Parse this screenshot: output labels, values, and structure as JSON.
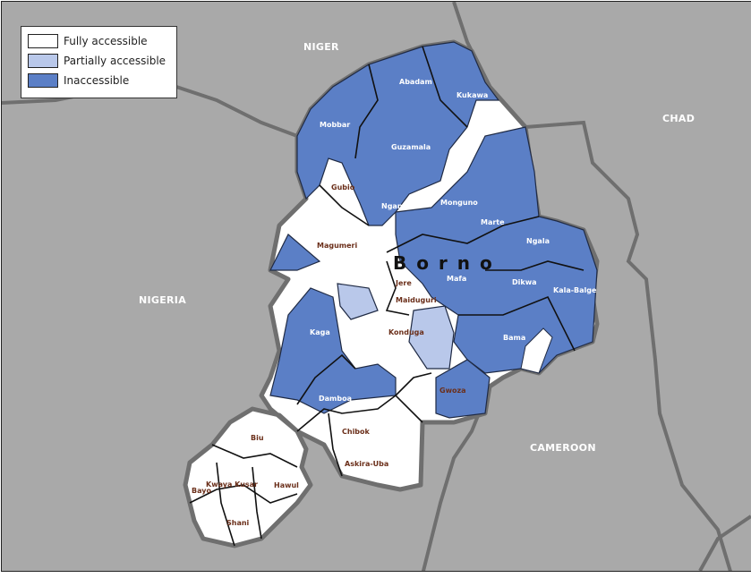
{
  "legend": {
    "items": [
      {
        "label": "Fully accessible",
        "color": "#ffffff"
      },
      {
        "label": "Partially accessible",
        "color": "#b9c8ea"
      },
      {
        "label": "Inaccessible",
        "color": "#5b7fc6"
      }
    ]
  },
  "countries": {
    "niger": "NIGER",
    "chad": "CHAD",
    "nigeria": "NIGERIA",
    "cameroon": "CAMEROON"
  },
  "state_label": "B o r n o",
  "colors": {
    "background": "#a9a9a9",
    "border": "#6f6f6f",
    "lga_label_blue": "#ffffff",
    "lga_label_white": "#6b2f1a"
  },
  "lgas": [
    {
      "name": "Abadam",
      "status": "Inaccessible"
    },
    {
      "name": "Kukawa",
      "status": "Inaccessible"
    },
    {
      "name": "Mobbar",
      "status": "Inaccessible"
    },
    {
      "name": "Guzamala",
      "status": "Inaccessible"
    },
    {
      "name": "Gubio",
      "status": "Fully accessible"
    },
    {
      "name": "Nganzai",
      "status": "Inaccessible"
    },
    {
      "name": "Monguno",
      "status": "Inaccessible"
    },
    {
      "name": "Marte",
      "status": "Inaccessible"
    },
    {
      "name": "Ngala",
      "status": "Inaccessible"
    },
    {
      "name": "Magumeri",
      "status": "Fully accessible"
    },
    {
      "name": "Jere",
      "status": "Fully accessible"
    },
    {
      "name": "Maiduguri",
      "status": "Fully accessible"
    },
    {
      "name": "Mafa",
      "status": "Inaccessible"
    },
    {
      "name": "Dikwa",
      "status": "Inaccessible"
    },
    {
      "name": "Kala-Balge",
      "status": "Inaccessible"
    },
    {
      "name": "Kaga",
      "status": "Inaccessible"
    },
    {
      "name": "Konduga",
      "status": "Fully accessible"
    },
    {
      "name": "Bama",
      "status": "Inaccessible"
    },
    {
      "name": "Damboa",
      "status": "Inaccessible"
    },
    {
      "name": "Gwoza",
      "status": "Fully accessible"
    },
    {
      "name": "Biu",
      "status": "Fully accessible"
    },
    {
      "name": "Chibok",
      "status": "Fully accessible"
    },
    {
      "name": "Askira-Uba",
      "status": "Fully accessible"
    },
    {
      "name": "Kwaya Kusar",
      "status": "Fully accessible"
    },
    {
      "name": "Bayo",
      "status": "Fully accessible"
    },
    {
      "name": "Hawul",
      "status": "Fully accessible"
    },
    {
      "name": "Shani",
      "status": "Fully accessible"
    }
  ]
}
